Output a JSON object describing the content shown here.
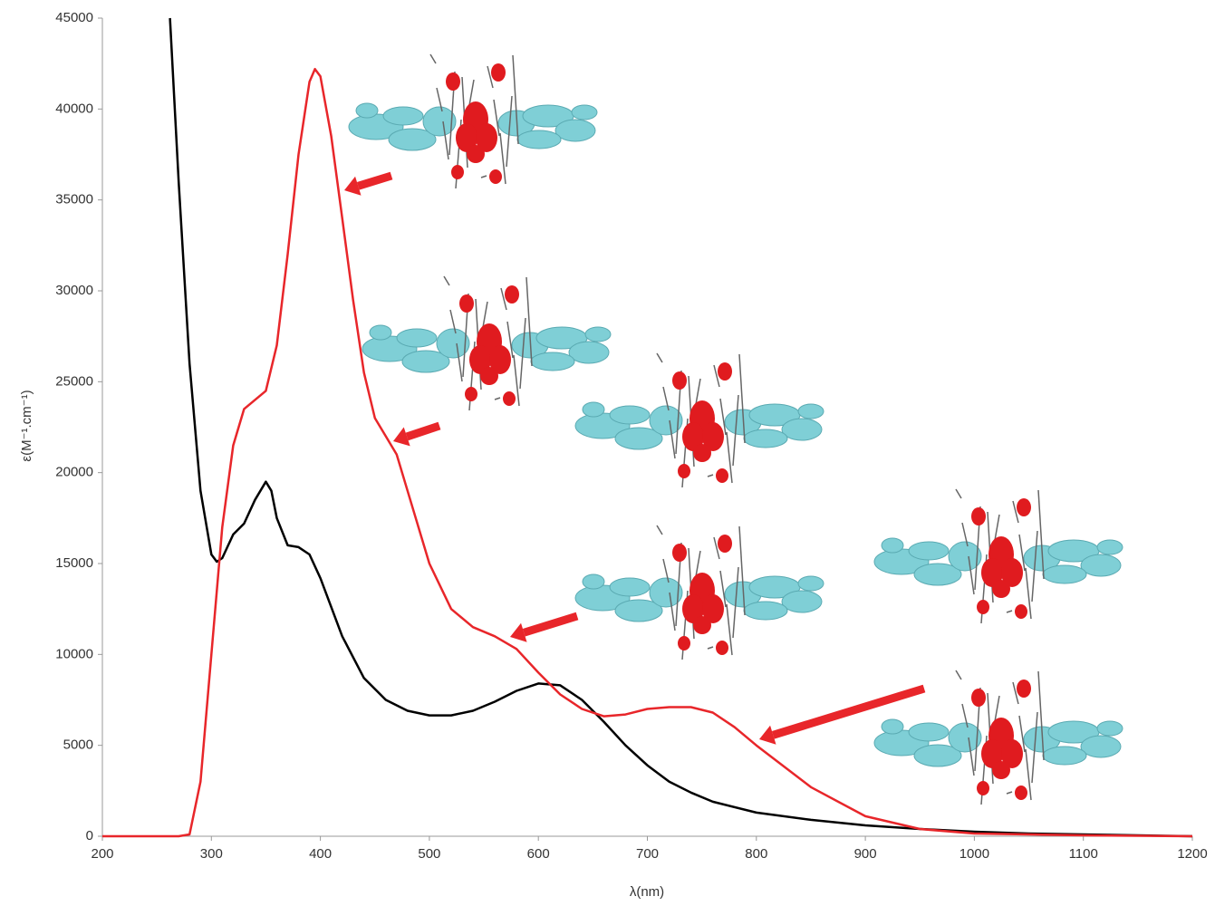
{
  "chart_data": {
    "type": "line",
    "xlabel": "λ(nm)",
    "ylabel": "ε(M⁻¹.cm⁻¹)",
    "xlim": [
      200,
      1200
    ],
    "xticks": [
      200,
      300,
      400,
      500,
      600,
      700,
      800,
      900,
      1000,
      1100,
      1200
    ],
    "ylim": [
      0,
      45000
    ],
    "yticks": [
      0,
      5000,
      10000,
      15000,
      20000,
      25000,
      30000,
      35000,
      40000,
      45000
    ],
    "grid": false,
    "series": [
      {
        "color": "#000000",
        "x": [
          262,
          270,
          280,
          290,
          300,
          305,
          310,
          320,
          330,
          340,
          350,
          355,
          360,
          370,
          380,
          390,
          400,
          420,
          440,
          460,
          480,
          500,
          520,
          540,
          560,
          580,
          600,
          620,
          640,
          660,
          680,
          700,
          720,
          740,
          760,
          800,
          850,
          900,
          950,
          1000,
          1050,
          1100,
          1150,
          1200
        ],
        "values": [
          45000,
          36000,
          26000,
          19000,
          15500,
          15100,
          15300,
          16600,
          17200,
          18500,
          19500,
          19000,
          17500,
          16000,
          15900,
          15500,
          14200,
          11000,
          8700,
          7500,
          6900,
          6650,
          6650,
          6900,
          7400,
          8000,
          8400,
          8300,
          7500,
          6300,
          5000,
          3900,
          3000,
          2400,
          1900,
          1300,
          900,
          600,
          400,
          250,
          150,
          100,
          50,
          0
        ]
      },
      {
        "color": "#e8262a",
        "x": [
          200,
          270,
          280,
          290,
          300,
          310,
          320,
          330,
          340,
          350,
          360,
          370,
          380,
          390,
          395,
          400,
          410,
          420,
          430,
          440,
          450,
          460,
          470,
          480,
          500,
          520,
          540,
          560,
          580,
          600,
          620,
          640,
          660,
          680,
          700,
          720,
          740,
          760,
          780,
          800,
          850,
          900,
          950,
          1000,
          1100,
          1200
        ],
        "values": [
          0,
          0,
          100,
          3000,
          10000,
          17000,
          21500,
          23500,
          24000,
          24500,
          27000,
          32000,
          37500,
          41500,
          42200,
          41800,
          38500,
          34000,
          29500,
          25500,
          23000,
          22000,
          21000,
          19000,
          15000,
          12500,
          11500,
          11000,
          10300,
          9000,
          7800,
          7000,
          6600,
          6700,
          7000,
          7100,
          7100,
          6800,
          6000,
          5000,
          2700,
          1100,
          400,
          150,
          50,
          0
        ]
      }
    ]
  }
}
